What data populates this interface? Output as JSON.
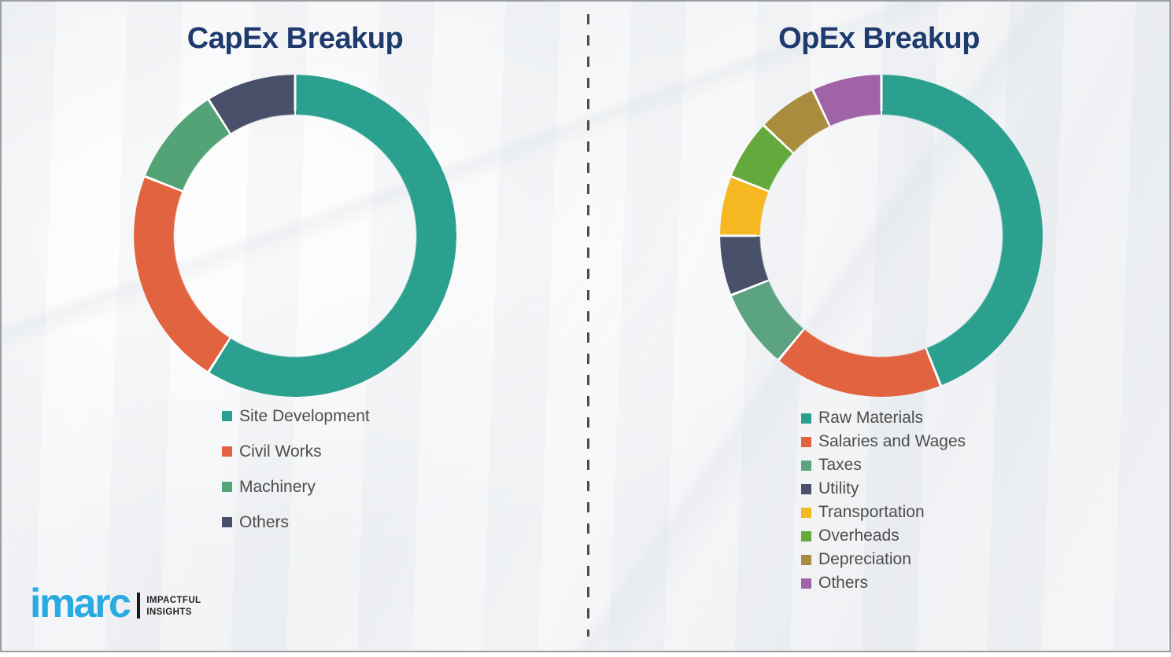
{
  "chart_data": [
    {
      "type": "pie",
      "subtype": "donut",
      "title": "CapEx Breakup",
      "categories": [
        "Site Development",
        "Civil Works",
        "Machinery",
        "Others"
      ],
      "values": [
        59,
        22,
        10,
        9
      ],
      "unit": "%",
      "values_are_estimates_from_arc_angles": true,
      "colors": [
        "#2ba08f",
        "#e2633f",
        "#53a377",
        "#49506a"
      ],
      "legend_position": "below",
      "start_angle_deg": 0,
      "direction": "clockwise"
    },
    {
      "type": "pie",
      "subtype": "donut",
      "title": "OpEx Breakup",
      "categories": [
        "Raw Materials",
        "Salaries and Wages",
        "Taxes",
        "Utility",
        "Transportation",
        "Overheads",
        "Depreciation",
        "Others"
      ],
      "values": [
        44,
        17,
        8,
        6,
        6,
        6,
        6,
        7
      ],
      "unit": "%",
      "values_are_estimates_from_arc_angles": true,
      "colors": [
        "#2ba08f",
        "#e2633f",
        "#5ca382",
        "#49506a",
        "#f5b722",
        "#63a93c",
        "#a98c3e",
        "#9f63a6"
      ],
      "legend_position": "below",
      "start_angle_deg": 0,
      "direction": "clockwise"
    }
  ],
  "logo": {
    "brand": "imarc",
    "tagline": [
      "IMPACTFUL",
      "INSIGHTS"
    ],
    "brand_color": "#29abe2"
  },
  "style": {
    "title_color": "#1f3a6e",
    "legend_text_color": "#4d4d4d",
    "canvas_background": "#f2f3f5",
    "divider_color": "#4d4d4d",
    "border_color": "#9a9da1",
    "slice_gap_color": "#ffffff"
  }
}
